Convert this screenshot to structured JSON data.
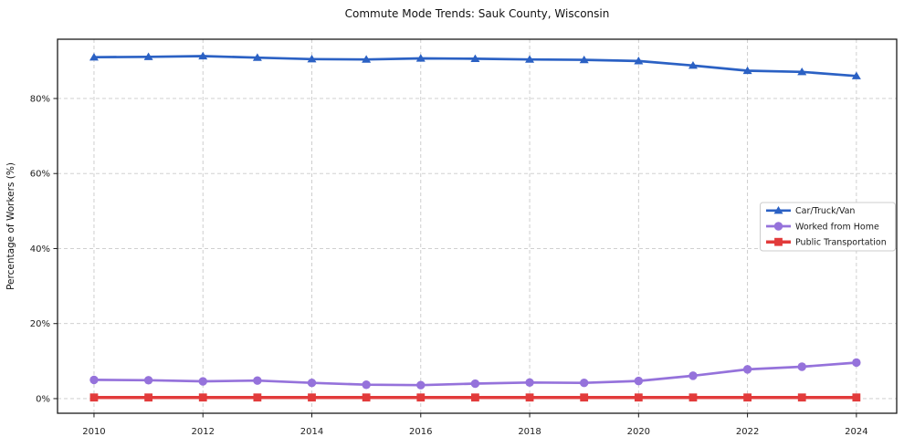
{
  "figure": {
    "title": "Commute Mode Trends: Sauk County, Wisconsin"
  },
  "chart_data": {
    "type": "line",
    "title": "Commute Mode Trends: Sauk County, Wisconsin",
    "xlabel": "",
    "ylabel": "Percentage of Workers (%)",
    "x": [
      2010,
      2011,
      2012,
      2013,
      2014,
      2015,
      2016,
      2017,
      2018,
      2019,
      2020,
      2021,
      2022,
      2023,
      2024
    ],
    "x_ticks": [
      2010,
      2012,
      2014,
      2016,
      2018,
      2020,
      2022,
      2024
    ],
    "y_ticks": [
      0,
      20,
      40,
      60,
      80
    ],
    "y_tick_suffix": "%",
    "xlim": [
      2009.33,
      2024.74
    ],
    "ylim": [
      -3.9,
      95.8
    ],
    "grid": true,
    "grid_style": "dashed",
    "legend_position": "center right",
    "axis_color": "#1a1a1a",
    "grid_color": "#c9c9c9",
    "tick_label_color": "#202020",
    "series": [
      {
        "name": "Car/Truck/Van",
        "marker": "triangle-up",
        "color": "#2b61c4",
        "line_width": 2.7,
        "values": [
          91.0,
          91.1,
          91.3,
          90.9,
          90.5,
          90.4,
          90.7,
          90.6,
          90.4,
          90.3,
          90.0,
          88.8,
          87.4,
          87.1,
          86.0
        ]
      },
      {
        "name": "Worked from Home",
        "marker": "circle",
        "color": "#9572db",
        "line_width": 2.7,
        "values": [
          5.0,
          4.9,
          4.6,
          4.8,
          4.2,
          3.7,
          3.6,
          4.0,
          4.3,
          4.2,
          4.7,
          6.1,
          7.8,
          8.5,
          9.6
        ]
      },
      {
        "name": "Public Transportation",
        "marker": "square",
        "color": "#e23b3b",
        "line_width": 3.5,
        "values": [
          0.3,
          0.3,
          0.3,
          0.3,
          0.3,
          0.3,
          0.3,
          0.3,
          0.3,
          0.3,
          0.3,
          0.3,
          0.3,
          0.3,
          0.3
        ]
      }
    ]
  }
}
